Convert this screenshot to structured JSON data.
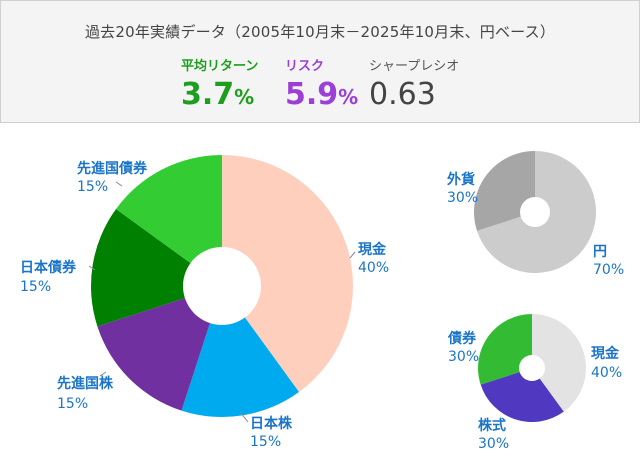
{
  "header": {
    "period": "過去20年実績データ（2005年10月末－2025年10月末、円ベース）",
    "metrics": [
      {
        "label": "平均リターン",
        "value": "3.7",
        "unit": "%",
        "color": "#1e9e1e"
      },
      {
        "label": "リスク",
        "value": "5.9",
        "unit": "%",
        "color": "#9b3fd6"
      },
      {
        "label": "シャープレシオ",
        "value": "0.63",
        "unit": "",
        "color": "#444444"
      }
    ]
  },
  "chart_data": [
    {
      "type": "pie",
      "donut": true,
      "slices": [
        {
          "label": "現金",
          "value": 40,
          "value_label": "40%",
          "color": "#ffcfbd"
        },
        {
          "label": "日本株",
          "value": 15,
          "value_label": "15%",
          "color": "#00aaee"
        },
        {
          "label": "先進国株",
          "value": 15,
          "value_label": "15%",
          "color": "#7030a0"
        },
        {
          "label": "日本債券",
          "value": 15,
          "value_label": "15%",
          "color": "#008000"
        },
        {
          "label": "先進国債券",
          "value": 15,
          "value_label": "15%",
          "color": "#33cc33"
        }
      ]
    },
    {
      "type": "pie",
      "donut": true,
      "slices": [
        {
          "label": "円",
          "value": 70,
          "value_label": "70%",
          "color": "#cccccc"
        },
        {
          "label": "外貨",
          "value": 30,
          "value_label": "30%",
          "color": "#a6a6a6"
        }
      ]
    },
    {
      "type": "pie",
      "donut": true,
      "slices": [
        {
          "label": "現金",
          "value": 40,
          "value_label": "40%",
          "color": "#e3e3e3"
        },
        {
          "label": "株式",
          "value": 30,
          "value_label": "30%",
          "color": "#5038c0"
        },
        {
          "label": "債券",
          "value": 30,
          "value_label": "30%",
          "color": "#33bb33"
        }
      ]
    }
  ],
  "label_color": "#1a75c9"
}
